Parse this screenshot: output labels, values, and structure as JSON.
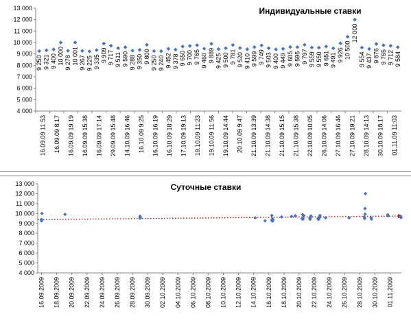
{
  "chart_data": [
    {
      "type": "scatter",
      "title": "Индивидуальные ставки",
      "ylim": [
        4000,
        13000
      ],
      "yticks": [
        "4 000",
        "5 000",
        "6 000",
        "7 000",
        "8 000",
        "9 000",
        "10 000",
        "11 000",
        "12 000",
        "13 000"
      ],
      "grid": false,
      "marker_color": "#4472C4",
      "categories": [
        "16.09.09 11:53",
        "16.09.09 8:17",
        "16.09.09 19:19",
        "16.09.09 15:38",
        "16.09.09 17:14",
        "29.09.09 15:48",
        "14.10.09 16:46",
        "16.10.09 9:25",
        "16.10.09 16:19",
        "16.10.09 18:29",
        "17.10.09 19:13",
        "19.10.09 11:23",
        "19.10.09 11:56",
        "19.10.09 14:44",
        "20.10.09 9:47",
        "21.10.09 13:39",
        "21.10.09 14:38",
        "21.10.09 15:15",
        "21.10.09 15:38",
        "22.10.09 10:05",
        "26.10.09 14:06",
        "27.10.09 16:46",
        "27.10.09 19:21",
        "28.10.09 14:13",
        "30.10.09 18:17",
        "01.11.09 11:03"
      ],
      "values": [
        9250,
        9321,
        9400,
        10000,
        9278,
        10001,
        9267,
        9225,
        9335,
        9909,
        9717,
        9511,
        9590,
        9288,
        9350,
        9800,
        9250,
        9240,
        9452,
        9378,
        9650,
        9700,
        9765,
        9460,
        9889,
        9425,
        9500,
        9781,
        9520,
        9410,
        9599,
        9749,
        9503,
        9400,
        9449,
        9605,
        9595,
        9797,
        9559,
        9550,
        9651,
        9491,
        9926,
        10500,
        12000,
        9554,
        9437,
        9876,
        9765,
        9712,
        9584
      ],
      "labels": [
        "9 250",
        "9 321",
        "9 400",
        "10 000",
        "9 278",
        "10 001",
        "9 267",
        "9 225",
        "9 335",
        "9 909",
        "9 717",
        "9 511",
        "9 590",
        "9 288",
        "9 350",
        "9 800",
        "9 250",
        "9 240",
        "9 452",
        "9 378",
        "9 650",
        "9 700",
        "9 765",
        "9 460",
        "9 889",
        "9 425",
        "9 500",
        "9 781",
        "9 520",
        "9 410",
        "9 599",
        "9 749",
        "9 503",
        "9 400",
        "9 449",
        "9 605",
        "9 595",
        "9 797",
        "9 559",
        "9 550",
        "9 651",
        "9 491",
        "9 926",
        "10 500",
        "12 000",
        "9 554",
        "9 437",
        "9 876",
        "9 765",
        "9 712",
        "9 584"
      ]
    },
    {
      "type": "scatter",
      "title": "Суточные ставки",
      "ylim": [
        4000,
        13000
      ],
      "yticks": [
        "4 000",
        "5 000",
        "6 000",
        "7 000",
        "8 000",
        "9 000",
        "10 000",
        "11 000",
        "12 000",
        "13 000"
      ],
      "grid": false,
      "marker_color": "#4472C4",
      "trendline": {
        "color": "#FF0000",
        "style": "dotted",
        "start": 9380,
        "end": 9740
      },
      "x_categories": [
        "16.09.2009",
        "18.09.2009",
        "20.09.2009",
        "22.09.2009",
        "24.09.2009",
        "26.09.2009",
        "28.09.2009",
        "30.09.2009",
        "02.10.2009",
        "04.10.2009",
        "06.10.2009",
        "08.10.2009",
        "10.10.2009",
        "12.10.2009",
        "14.10.2009",
        "16.10.2009",
        "18.10.2009",
        "20.10.2009",
        "22.10.2009",
        "24.10.2009",
        "26.10.2009",
        "28.10.2009",
        "30.10.2009",
        "01.11.2009"
      ],
      "points": [
        {
          "x": 0.0,
          "y": 9250
        },
        {
          "x": 0.0,
          "y": 9321
        },
        {
          "x": 0.0,
          "y": 9400
        },
        {
          "x": 0.05,
          "y": 10000
        },
        {
          "x": 3.1,
          "y": 9909
        },
        {
          "x": 13.0,
          "y": 9717
        },
        {
          "x": 13.0,
          "y": 9511
        },
        {
          "x": 13.05,
          "y": 9590
        },
        {
          "x": 28.2,
          "y": 9560
        },
        {
          "x": 29.5,
          "y": 9260
        },
        {
          "x": 30.4,
          "y": 9350
        },
        {
          "x": 30.4,
          "y": 9800
        },
        {
          "x": 30.45,
          "y": 9250
        },
        {
          "x": 30.5,
          "y": 9240
        },
        {
          "x": 30.5,
          "y": 9452
        },
        {
          "x": 30.55,
          "y": 9378
        },
        {
          "x": 31.7,
          "y": 9650
        },
        {
          "x": 33.0,
          "y": 9700
        },
        {
          "x": 33.5,
          "y": 9765
        },
        {
          "x": 34.4,
          "y": 9460
        },
        {
          "x": 34.45,
          "y": 9889
        },
        {
          "x": 34.5,
          "y": 9425
        },
        {
          "x": 34.5,
          "y": 9500
        },
        {
          "x": 34.6,
          "y": 9781
        },
        {
          "x": 35.4,
          "y": 9520
        },
        {
          "x": 35.45,
          "y": 9410
        },
        {
          "x": 35.5,
          "y": 9599
        },
        {
          "x": 35.55,
          "y": 9749
        },
        {
          "x": 36.5,
          "y": 9503
        },
        {
          "x": 36.55,
          "y": 9400
        },
        {
          "x": 36.6,
          "y": 9449
        },
        {
          "x": 36.65,
          "y": 9605
        },
        {
          "x": 36.7,
          "y": 9595
        },
        {
          "x": 36.75,
          "y": 9797
        },
        {
          "x": 37.5,
          "y": 9559
        },
        {
          "x": 40.6,
          "y": 9550
        },
        {
          "x": 42.6,
          "y": 9651
        },
        {
          "x": 42.65,
          "y": 9491
        },
        {
          "x": 42.7,
          "y": 9926
        },
        {
          "x": 42.7,
          "y": 10500
        },
        {
          "x": 42.75,
          "y": 12000
        },
        {
          "x": 43.5,
          "y": 9554
        },
        {
          "x": 43.55,
          "y": 9437
        },
        {
          "x": 45.7,
          "y": 9876
        },
        {
          "x": 45.75,
          "y": 9765
        },
        {
          "x": 47.4,
          "y": 9712
        },
        {
          "x": 47.45,
          "y": 9584
        }
      ]
    }
  ]
}
